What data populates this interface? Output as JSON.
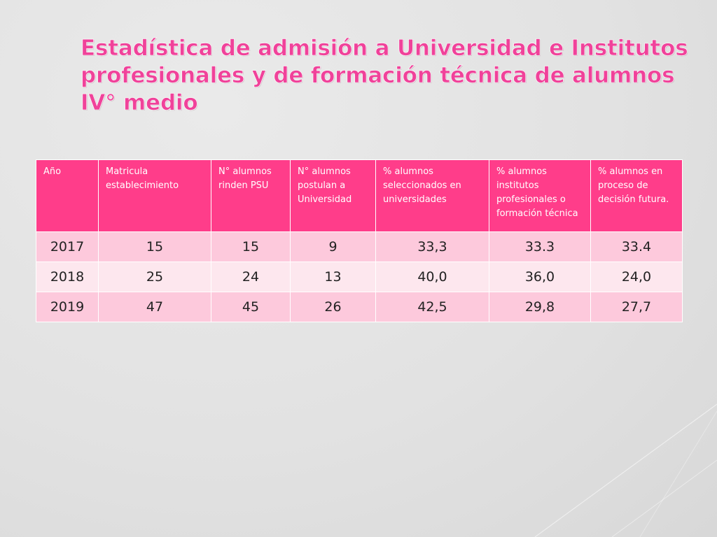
{
  "slide": {
    "title_lines": [
      "Estadística de admisión a Universidad e Institutos",
      "profesionales y de formación técnica  de alumnos",
      "IV° medio"
    ]
  },
  "table": {
    "headers": [
      "Año",
      "Matricula establecimiento",
      "N° alumnos rinden PSU",
      "N° alumnos postulan a Universidad",
      "% alumnos seleccionados en universidades",
      "% alumnos institutos profesionales o formación técnica",
      "% alumnos en proceso de decisión futura."
    ],
    "rows": [
      [
        "2017",
        "15",
        "15",
        "9",
        "33,3",
        "33.3",
        "33.4"
      ],
      [
        "2018",
        "25",
        "24",
        "13",
        "40,0",
        "36,0",
        "24,0"
      ],
      [
        "2019",
        "47",
        "45",
        "26",
        "42,5",
        "29,8",
        "27,7"
      ]
    ]
  },
  "colors": {
    "title": "#f0429a",
    "header_bg": "#ff3d8a",
    "row_odd_bg": "#fdc9dc",
    "row_even_bg": "#fde7ee",
    "background": "#e2e2e2"
  }
}
